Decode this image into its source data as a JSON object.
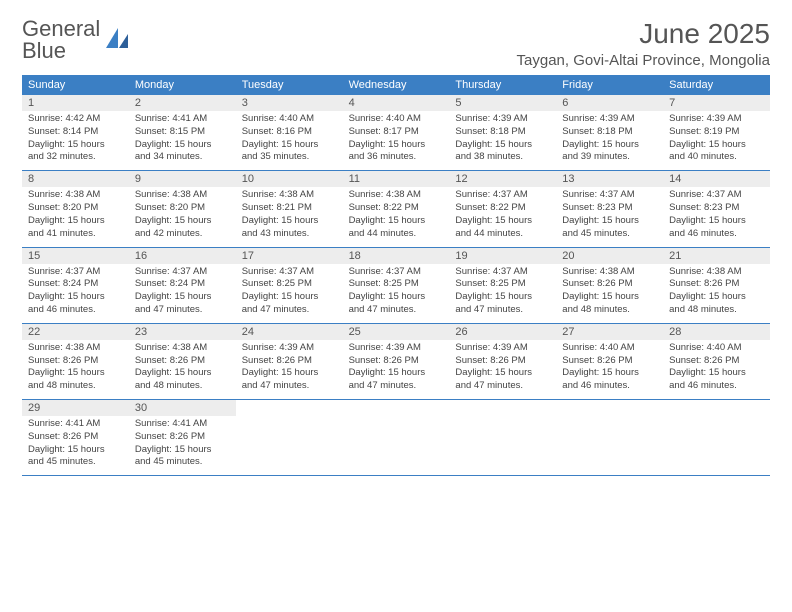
{
  "logo": {
    "line1": "General",
    "line2": "Blue"
  },
  "header": {
    "month_title": "June 2025",
    "location": "Taygan, Govi-Altai Province, Mongolia"
  },
  "colors": {
    "header_bar": "#3b7fc4",
    "daynum_bg": "#ededed",
    "text": "#555555",
    "body_text": "#444444",
    "background": "#ffffff"
  },
  "typography": {
    "month_title_fontsize": 28,
    "location_fontsize": 15,
    "weekday_fontsize": 11,
    "daynum_fontsize": 11,
    "body_fontsize": 9.5
  },
  "weekdays": [
    "Sunday",
    "Monday",
    "Tuesday",
    "Wednesday",
    "Thursday",
    "Friday",
    "Saturday"
  ],
  "weeks": [
    [
      {
        "num": "1",
        "sunrise": "4:42 AM",
        "sunset": "8:14 PM",
        "daylight": "15 hours and 32 minutes."
      },
      {
        "num": "2",
        "sunrise": "4:41 AM",
        "sunset": "8:15 PM",
        "daylight": "15 hours and 34 minutes."
      },
      {
        "num": "3",
        "sunrise": "4:40 AM",
        "sunset": "8:16 PM",
        "daylight": "15 hours and 35 minutes."
      },
      {
        "num": "4",
        "sunrise": "4:40 AM",
        "sunset": "8:17 PM",
        "daylight": "15 hours and 36 minutes."
      },
      {
        "num": "5",
        "sunrise": "4:39 AM",
        "sunset": "8:18 PM",
        "daylight": "15 hours and 38 minutes."
      },
      {
        "num": "6",
        "sunrise": "4:39 AM",
        "sunset": "8:18 PM",
        "daylight": "15 hours and 39 minutes."
      },
      {
        "num": "7",
        "sunrise": "4:39 AM",
        "sunset": "8:19 PM",
        "daylight": "15 hours and 40 minutes."
      }
    ],
    [
      {
        "num": "8",
        "sunrise": "4:38 AM",
        "sunset": "8:20 PM",
        "daylight": "15 hours and 41 minutes."
      },
      {
        "num": "9",
        "sunrise": "4:38 AM",
        "sunset": "8:20 PM",
        "daylight": "15 hours and 42 minutes."
      },
      {
        "num": "10",
        "sunrise": "4:38 AM",
        "sunset": "8:21 PM",
        "daylight": "15 hours and 43 minutes."
      },
      {
        "num": "11",
        "sunrise": "4:38 AM",
        "sunset": "8:22 PM",
        "daylight": "15 hours and 44 minutes."
      },
      {
        "num": "12",
        "sunrise": "4:37 AM",
        "sunset": "8:22 PM",
        "daylight": "15 hours and 44 minutes."
      },
      {
        "num": "13",
        "sunrise": "4:37 AM",
        "sunset": "8:23 PM",
        "daylight": "15 hours and 45 minutes."
      },
      {
        "num": "14",
        "sunrise": "4:37 AM",
        "sunset": "8:23 PM",
        "daylight": "15 hours and 46 minutes."
      }
    ],
    [
      {
        "num": "15",
        "sunrise": "4:37 AM",
        "sunset": "8:24 PM",
        "daylight": "15 hours and 46 minutes."
      },
      {
        "num": "16",
        "sunrise": "4:37 AM",
        "sunset": "8:24 PM",
        "daylight": "15 hours and 47 minutes."
      },
      {
        "num": "17",
        "sunrise": "4:37 AM",
        "sunset": "8:25 PM",
        "daylight": "15 hours and 47 minutes."
      },
      {
        "num": "18",
        "sunrise": "4:37 AM",
        "sunset": "8:25 PM",
        "daylight": "15 hours and 47 minutes."
      },
      {
        "num": "19",
        "sunrise": "4:37 AM",
        "sunset": "8:25 PM",
        "daylight": "15 hours and 47 minutes."
      },
      {
        "num": "20",
        "sunrise": "4:38 AM",
        "sunset": "8:26 PM",
        "daylight": "15 hours and 48 minutes."
      },
      {
        "num": "21",
        "sunrise": "4:38 AM",
        "sunset": "8:26 PM",
        "daylight": "15 hours and 48 minutes."
      }
    ],
    [
      {
        "num": "22",
        "sunrise": "4:38 AM",
        "sunset": "8:26 PM",
        "daylight": "15 hours and 48 minutes."
      },
      {
        "num": "23",
        "sunrise": "4:38 AM",
        "sunset": "8:26 PM",
        "daylight": "15 hours and 48 minutes."
      },
      {
        "num": "24",
        "sunrise": "4:39 AM",
        "sunset": "8:26 PM",
        "daylight": "15 hours and 47 minutes."
      },
      {
        "num": "25",
        "sunrise": "4:39 AM",
        "sunset": "8:26 PM",
        "daylight": "15 hours and 47 minutes."
      },
      {
        "num": "26",
        "sunrise": "4:39 AM",
        "sunset": "8:26 PM",
        "daylight": "15 hours and 47 minutes."
      },
      {
        "num": "27",
        "sunrise": "4:40 AM",
        "sunset": "8:26 PM",
        "daylight": "15 hours and 46 minutes."
      },
      {
        "num": "28",
        "sunrise": "4:40 AM",
        "sunset": "8:26 PM",
        "daylight": "15 hours and 46 minutes."
      }
    ],
    [
      {
        "num": "29",
        "sunrise": "4:41 AM",
        "sunset": "8:26 PM",
        "daylight": "15 hours and 45 minutes."
      },
      {
        "num": "30",
        "sunrise": "4:41 AM",
        "sunset": "8:26 PM",
        "daylight": "15 hours and 45 minutes."
      },
      null,
      null,
      null,
      null,
      null
    ]
  ],
  "labels": {
    "sunrise": "Sunrise:",
    "sunset": "Sunset:",
    "daylight": "Daylight:"
  }
}
